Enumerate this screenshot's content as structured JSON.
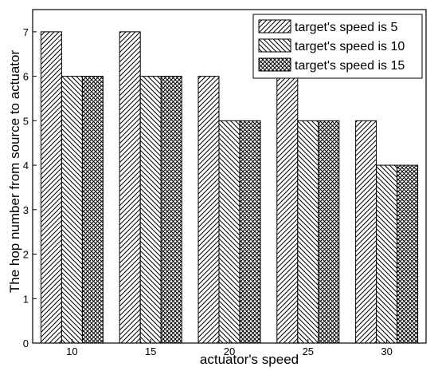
{
  "chart_data": {
    "type": "bar",
    "xlabel": "actuator's speed",
    "ylabel": "The hop number from source to actuator",
    "categories": [
      "10",
      "15",
      "20",
      "25",
      "30"
    ],
    "ylim": [
      0,
      7.5
    ],
    "yticks": [
      0,
      1,
      2,
      3,
      4,
      5,
      6,
      7
    ],
    "grid": false,
    "legend_position": "top-right",
    "series": [
      {
        "name": "target's speed is 5",
        "values": [
          7,
          7,
          6,
          6,
          5
        ],
        "pattern": "forward-diagonal"
      },
      {
        "name": "target's speed is 10",
        "values": [
          6,
          6,
          5,
          5,
          4
        ],
        "pattern": "backward-diagonal"
      },
      {
        "name": "target's speed is 15",
        "values": [
          6,
          6,
          5,
          5,
          4
        ],
        "pattern": "crosshatch"
      }
    ]
  }
}
